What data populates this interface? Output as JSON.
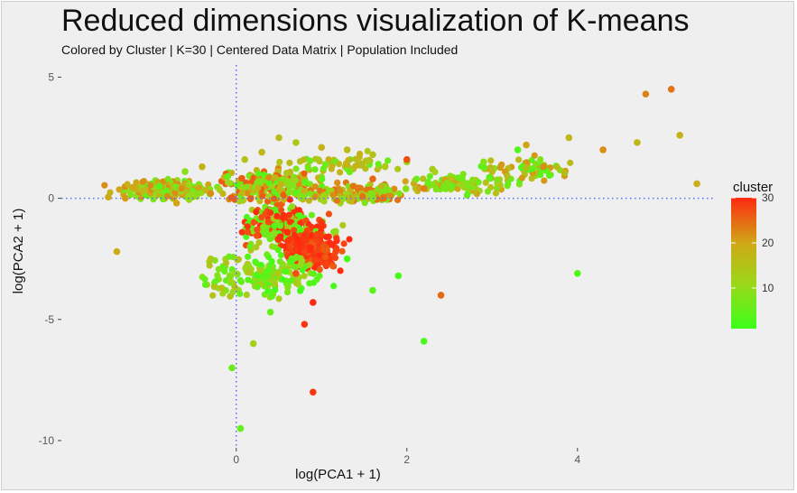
{
  "chart_data": {
    "type": "scatter",
    "title": "Reduced dimensions visualization of K-means",
    "subtitle": "Colored by Cluster | K=30 | Centered Data Matrix | Population Included",
    "xlabel": "log(PCA1 + 1)",
    "ylabel": "log(PCA2 + 1)",
    "xlim": [
      -2.05,
      5.6
    ],
    "ylim": [
      -10.3,
      5.5
    ],
    "x_ticks": [
      0,
      2,
      4
    ],
    "x_tick_labels": [
      "0",
      "2",
      "4"
    ],
    "y_ticks": [
      5,
      0,
      -5,
      -10
    ],
    "y_tick_labels": [
      "5",
      "0",
      "-5",
      "-10"
    ],
    "reference_lines": [
      {
        "axis": "x",
        "value": 0
      },
      {
        "axis": "y",
        "value": 0
      }
    ],
    "reference_line_color": "#5f6bff",
    "grid": false,
    "background": "#efefef",
    "legend": {
      "title": "cluster",
      "placement": "right",
      "range": [
        1,
        30
      ],
      "ticks": [
        10,
        20,
        30
      ],
      "tick_labels": [
        "10",
        "20",
        "30"
      ],
      "colors": [
        "#3cff1a",
        "#9ed619",
        "#cfa817",
        "#ff2a10"
      ]
    },
    "points": [
      {
        "x": -1.5,
        "y": 0.05,
        "cluster": 19
      },
      {
        "x": -1.3,
        "y": 0.0,
        "cluster": 21
      },
      {
        "x": -1.1,
        "y": 0.3,
        "cluster": 17
      },
      {
        "x": -0.9,
        "y": 0.5,
        "cluster": 4
      },
      {
        "x": -0.7,
        "y": -0.2,
        "cluster": 20
      },
      {
        "x": -0.6,
        "y": 1.1,
        "cluster": 9
      },
      {
        "x": -0.4,
        "y": 1.3,
        "cluster": 18
      },
      {
        "x": -0.3,
        "y": 0.2,
        "cluster": 22
      },
      {
        "x": -0.1,
        "y": 0.9,
        "cluster": 6
      },
      {
        "x": 0.1,
        "y": 1.6,
        "cluster": 15
      },
      {
        "x": 0.3,
        "y": 1.9,
        "cluster": 17
      },
      {
        "x": 0.5,
        "y": 2.5,
        "cluster": 16
      },
      {
        "x": 0.7,
        "y": 2.3,
        "cluster": 14
      },
      {
        "x": 1.0,
        "y": 2.1,
        "cluster": 18
      },
      {
        "x": 1.3,
        "y": 2.0,
        "cluster": 16
      },
      {
        "x": 1.6,
        "y": 1.8,
        "cluster": 15
      },
      {
        "x": 2.0,
        "y": 1.5,
        "cluster": 10
      },
      {
        "x": 2.3,
        "y": 1.2,
        "cluster": 13
      },
      {
        "x": 2.9,
        "y": 1.5,
        "cluster": 8
      },
      {
        "x": 3.3,
        "y": 2.0,
        "cluster": 3
      },
      {
        "x": 3.9,
        "y": 2.5,
        "cluster": 17
      },
      {
        "x": 4.3,
        "y": 2.0,
        "cluster": 22
      },
      {
        "x": 4.7,
        "y": 2.3,
        "cluster": 17
      },
      {
        "x": 5.2,
        "y": 2.6,
        "cluster": 18
      },
      {
        "x": 4.8,
        "y": 4.3,
        "cluster": 23
      },
      {
        "x": 5.1,
        "y": 4.5,
        "cluster": 24
      },
      {
        "x": 5.4,
        "y": 0.6,
        "cluster": 19
      },
      {
        "x": 0.4,
        "y": -0.6,
        "cluster": 29
      },
      {
        "x": 0.6,
        "y": -1.4,
        "cluster": 30
      },
      {
        "x": 0.8,
        "y": -2.2,
        "cluster": 28
      },
      {
        "x": 1.0,
        "y": -1.0,
        "cluster": 29
      },
      {
        "x": 0.7,
        "y": -3.1,
        "cluster": 27
      },
      {
        "x": 0.9,
        "y": -4.3,
        "cluster": 30
      },
      {
        "x": 0.8,
        "y": -5.2,
        "cluster": 29
      },
      {
        "x": 1.3,
        "y": -2.5,
        "cluster": 2
      },
      {
        "x": 1.6,
        "y": -3.8,
        "cluster": 4
      },
      {
        "x": 2.2,
        "y": -5.9,
        "cluster": 3
      },
      {
        "x": 2.4,
        "y": -4.0,
        "cluster": 25
      },
      {
        "x": 4.0,
        "y": -3.1,
        "cluster": 3
      },
      {
        "x": 0.9,
        "y": -8.0,
        "cluster": 29
      },
      {
        "x": 0.05,
        "y": -9.5,
        "cluster": 5
      },
      {
        "x": -0.05,
        "y": -7.0,
        "cluster": 6
      },
      {
        "x": 0.2,
        "y": -6.0,
        "cluster": 12
      },
      {
        "x": -1.4,
        "y": -2.2,
        "cluster": 19
      },
      {
        "x": -0.3,
        "y": -2.5,
        "cluster": 14
      },
      {
        "x": 0.4,
        "y": -4.7,
        "cluster": 5
      },
      {
        "x": 1.9,
        "y": -3.2,
        "cluster": 2
      },
      {
        "x": 1.6,
        "y": 0.8,
        "cluster": 25
      },
      {
        "x": 2.2,
        "y": 0.4,
        "cluster": 23
      },
      {
        "x": 3.4,
        "y": 2.2,
        "cluster": 20
      },
      {
        "x": 3.6,
        "y": 1.3,
        "cluster": 22
      },
      {
        "x": 2.0,
        "y": 1.6,
        "cluster": 27
      }
    ]
  }
}
